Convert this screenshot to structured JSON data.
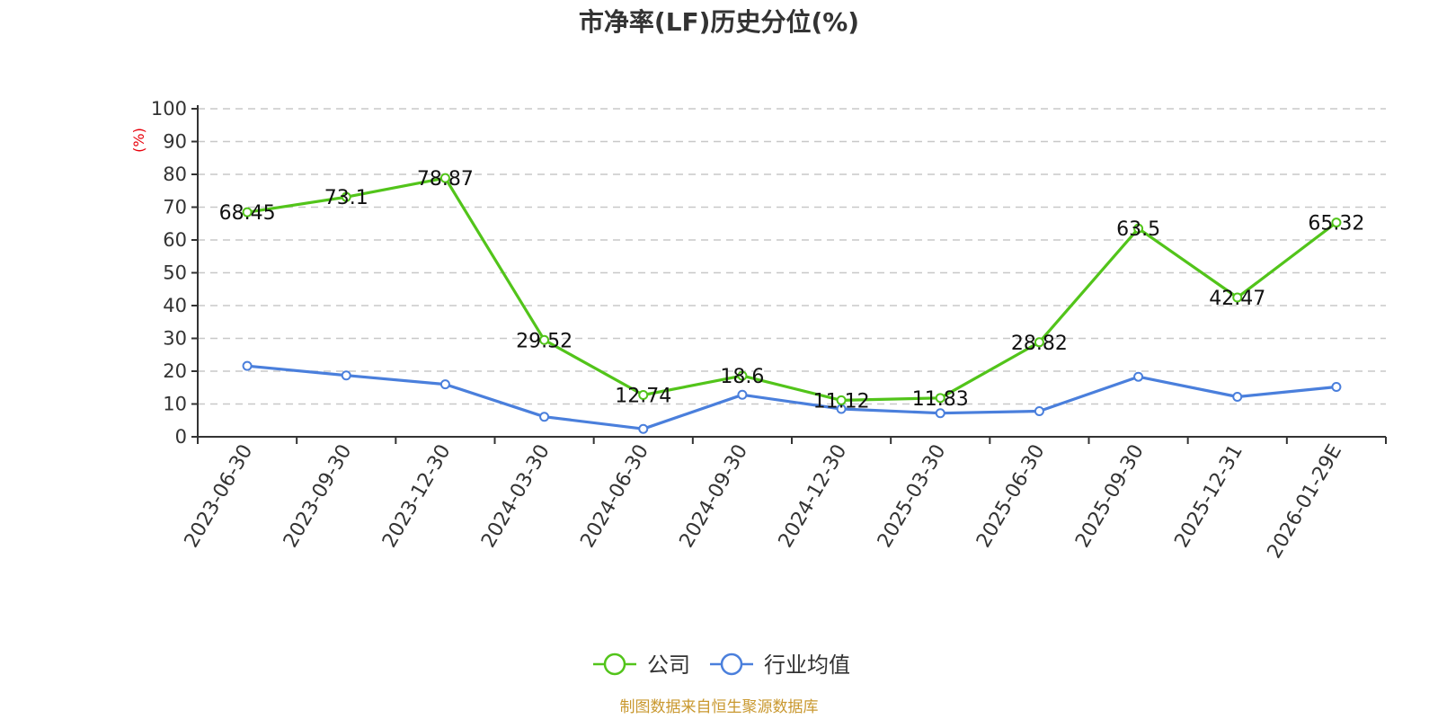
{
  "chart_data": {
    "type": "line",
    "title": "市净率(LF)历史分位(%)",
    "ylabel": "(%)",
    "ylim": [
      0,
      100
    ],
    "yticks": [
      0,
      10,
      20,
      30,
      40,
      50,
      60,
      70,
      80,
      90,
      100
    ],
    "categories": [
      "2023-06-30",
      "2023-09-30",
      "2023-12-30",
      "2024-03-30",
      "2024-06-30",
      "2024-09-30",
      "2024-12-30",
      "2025-03-30",
      "2025-06-30",
      "2025-09-30",
      "2025-12-31",
      "2026-01-29E"
    ],
    "series": [
      {
        "name": "公司",
        "color": "#52c41a",
        "values": [
          68.45,
          73.1,
          78.87,
          29.52,
          12.74,
          18.6,
          11.12,
          11.83,
          28.82,
          63.5,
          42.47,
          65.32
        ],
        "labels": [
          "68.45",
          "73.1",
          "78.87",
          "29.52",
          "12.74",
          "18.6",
          "11.12",
          "11.83",
          "28.82",
          "63.5",
          "42.47",
          "65.32"
        ]
      },
      {
        "name": "行业均值",
        "color": "#4a7fdc",
        "values": [
          21.6,
          18.7,
          16.0,
          6.1,
          2.4,
          12.8,
          8.5,
          7.2,
          7.8,
          18.3,
          12.2,
          15.2
        ]
      }
    ],
    "grid": true,
    "legend": "bottom-center",
    "source": "制图数据来自恒生聚源数据库",
    "colors": {
      "unit": "#e8000b",
      "source": "#c9982f",
      "axis": "#333333",
      "grid": "#c8c8c8"
    }
  }
}
